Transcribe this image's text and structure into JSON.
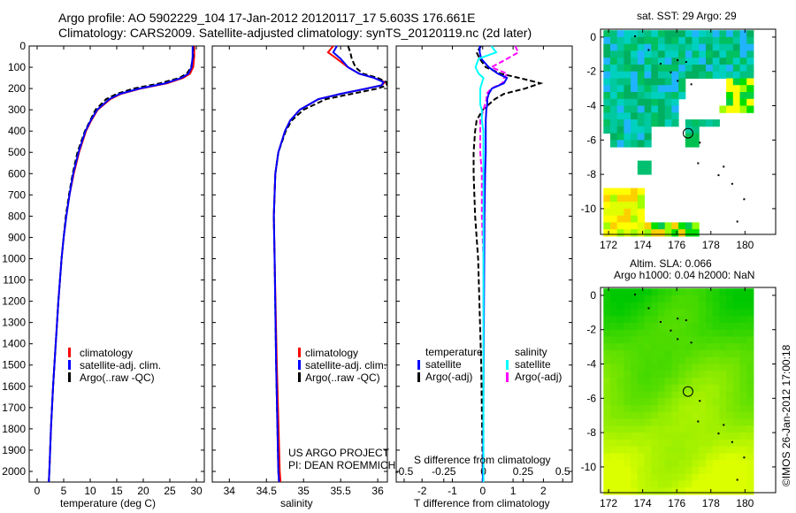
{
  "title_line1": "Argo profile: AO 5902229_104 17-Jan-2012 20120117_17 5.603S 176.661E",
  "title_line2": "Climatology: CARS2009. Satellite-adjusted climatology: synTS_20120119.nc (2d later)",
  "credit": "US ARGO PROJECT",
  "pi": "PI: DEAN ROEMMICH",
  "stamp": "©IMOS 26-Jan-2012 17:00:18",
  "colors": {
    "clim": "#ff0000",
    "sat": "#0000ff",
    "argo": "#000000",
    "sal_sat": "#00ffff",
    "sal_argo": "#ff00ff"
  },
  "chart_data": [
    {
      "type": "line",
      "name": "temperature",
      "xlabel": "temperature (deg C)",
      "ylabel": "",
      "xlim": [
        -1.5,
        31.5
      ],
      "ylim": [
        2050,
        0
      ],
      "xticks": [
        0,
        5,
        10,
        15,
        20,
        25,
        30
      ],
      "yticks": [
        0,
        100,
        200,
        300,
        400,
        500,
        600,
        700,
        800,
        900,
        1000,
        1100,
        1200,
        1300,
        1400,
        1500,
        1600,
        1700,
        1800,
        1900,
        2000
      ],
      "depth": [
        0,
        50,
        100,
        130,
        150,
        175,
        200,
        225,
        250,
        300,
        350,
        400,
        500,
        600,
        700,
        800,
        900,
        1000,
        1200,
        1400,
        1600,
        1800,
        2000,
        2050
      ],
      "legend": [
        "climatology",
        "satellite-adj. clim.",
        "Argo(..raw -QC)"
      ],
      "series": [
        {
          "name": "climatology",
          "values": [
            29.6,
            29.6,
            29.4,
            28.8,
            27.5,
            24.5,
            19.5,
            15.8,
            13.8,
            11.4,
            10.2,
            9.2,
            7.9,
            6.9,
            6.1,
            5.5,
            5.0,
            4.6,
            4.0,
            3.5,
            3.0,
            2.6,
            2.3,
            2.2
          ]
        },
        {
          "name": "satellite-adj. clim.",
          "values": [
            29.3,
            29.3,
            29.1,
            28.5,
            27.2,
            24.2,
            19.3,
            15.6,
            13.6,
            11.3,
            10.1,
            9.1,
            7.8,
            6.8,
            6.1,
            5.5,
            5.0,
            4.6,
            4.0,
            3.5,
            3.0,
            2.6,
            2.3,
            2.2
          ]
        },
        {
          "name": "Argo(..raw -QC)",
          "values": [
            29.4,
            29.4,
            29.0,
            28.2,
            26.8,
            23.2,
            18.2,
            15.0,
            13.0,
            11.0,
            10.0,
            9.0,
            7.6,
            6.7,
            6.0,
            5.4,
            5.0,
            4.6,
            4.0,
            3.5,
            3.0,
            2.6,
            2.3,
            2.2
          ]
        }
      ]
    },
    {
      "type": "line",
      "name": "salinity",
      "xlabel": "salinity",
      "xlim": [
        33.77,
        36.13
      ],
      "ylim": [
        2050,
        0
      ],
      "xticks": [
        34,
        34.5,
        35,
        35.5,
        36
      ],
      "depth": [
        0,
        30,
        60,
        100,
        130,
        150,
        170,
        185,
        200,
        225,
        250,
        300,
        350,
        400,
        500,
        600,
        800,
        1000,
        1500,
        2000,
        2050
      ],
      "legend": [
        "climatology",
        "satellite-adj. clim.",
        "Argo(..raw -QC)"
      ],
      "series": [
        {
          "name": "climatology",
          "values": [
            35.4,
            35.33,
            35.45,
            35.6,
            35.75,
            35.95,
            36.1,
            36.05,
            35.85,
            35.5,
            35.2,
            34.95,
            34.82,
            34.75,
            34.66,
            34.62,
            34.6,
            34.61,
            34.64,
            34.68,
            34.69
          ]
        },
        {
          "name": "satellite-adj. clim.",
          "values": [
            35.45,
            35.4,
            35.5,
            35.6,
            35.75,
            35.95,
            36.08,
            36.05,
            35.85,
            35.5,
            35.2,
            34.95,
            34.82,
            34.75,
            34.66,
            34.62,
            34.6,
            34.61,
            34.63,
            34.66,
            34.67
          ]
        },
        {
          "name": "Argo(..raw -QC)",
          "values": [
            35.6,
            35.63,
            35.65,
            35.7,
            35.8,
            36.0,
            36.12,
            36.12,
            36.0,
            35.65,
            35.3,
            35.0,
            34.84,
            34.76,
            34.66,
            34.62,
            34.6,
            34.61,
            34.63,
            34.66,
            34.67
          ]
        }
      ]
    },
    {
      "type": "line",
      "name": "difference",
      "xlabel": "T difference from climatology",
      "xlabel_top": "S difference from climatology",
      "xlim": [
        -2.85,
        2.95
      ],
      "xlim_s": [
        -0.55,
        0.56
      ],
      "xticks": [
        -2,
        -1,
        0,
        1,
        2
      ],
      "xticks_s": [
        -0.5,
        -0.25,
        0,
        0.25,
        0.5
      ],
      "xticklabels_s": [
        "-0.5",
        "-0.25",
        "0",
        "0.25",
        "0.5"
      ],
      "depth": [
        0,
        30,
        60,
        100,
        130,
        150,
        175,
        200,
        225,
        250,
        275,
        300,
        350,
        400,
        500,
        600,
        800,
        1000,
        1500,
        2000,
        2050
      ],
      "legend_headers": [
        "temperature",
        "salinity"
      ],
      "legend": [
        "satellite",
        "Argo(-adj)",
        "satellite",
        "Argo(-adj)"
      ],
      "series": [
        {
          "name": "T satellite",
          "axis": "T",
          "values": [
            -0.1,
            -0.1,
            -0.05,
            0.2,
            0.5,
            0.8,
            0.7,
            0.3,
            0.2,
            0.15,
            0.15,
            0.12,
            0.1,
            0.1,
            0.1,
            0.08,
            0.06,
            0.05,
            0.03,
            0.01,
            0.0
          ]
        },
        {
          "name": "T Argo(-adj)",
          "axis": "T",
          "values": [
            -0.05,
            -0.2,
            -0.1,
            0.1,
            0.6,
            1.2,
            1.9,
            1.4,
            0.7,
            0.4,
            0.2,
            0.0,
            -0.2,
            -0.25,
            -0.3,
            -0.3,
            -0.25,
            -0.15,
            -0.05,
            0.0,
            0.0
          ]
        },
        {
          "name": "S satellite",
          "axis": "S",
          "values": [
            0.05,
            0.08,
            -0.03,
            -0.05,
            -0.03,
            0.0,
            -0.01,
            -0.02,
            -0.02,
            -0.02,
            -0.02,
            -0.01,
            -0.01,
            0.0,
            0.0,
            0.0,
            0.0,
            0.0,
            0.0,
            0.0,
            0.0
          ]
        },
        {
          "name": "S Argo(-adj)",
          "axis": "S",
          "values": [
            0.2,
            0.22,
            0.15,
            0.05,
            0.15,
            0.13,
            0.12,
            0.05,
            0.02,
            0.02,
            0.01,
            0.0,
            -0.02,
            -0.02,
            -0.02,
            -0.01,
            -0.01,
            0.0,
            0.0,
            0.0,
            0.0
          ]
        }
      ]
    },
    {
      "type": "heatmap",
      "name": "sst-map",
      "title": "sat. SST: 29 Argo: 29",
      "xlim": [
        171.53,
        181.8
      ],
      "ylim": [
        -11.5,
        0.46
      ],
      "xticks": [
        172,
        174,
        176,
        178,
        180
      ],
      "yticks": [
        0,
        -2,
        -4,
        -6,
        -8,
        -10
      ],
      "profile_location": [
        176.661,
        -5.603
      ]
    },
    {
      "type": "heatmap",
      "name": "sla-map",
      "title": "Altim. SLA: 0.066",
      "subtitle": "Argo h1000: 0.04 h2000: NaN",
      "xlim": [
        171.53,
        181.8
      ],
      "ylim": [
        -11.5,
        0.46
      ],
      "xticks": [
        172,
        174,
        176,
        178,
        180
      ],
      "yticks": [
        0,
        -2,
        -4,
        -6,
        -8,
        -10
      ],
      "profile_location": [
        176.661,
        -5.603
      ]
    }
  ]
}
